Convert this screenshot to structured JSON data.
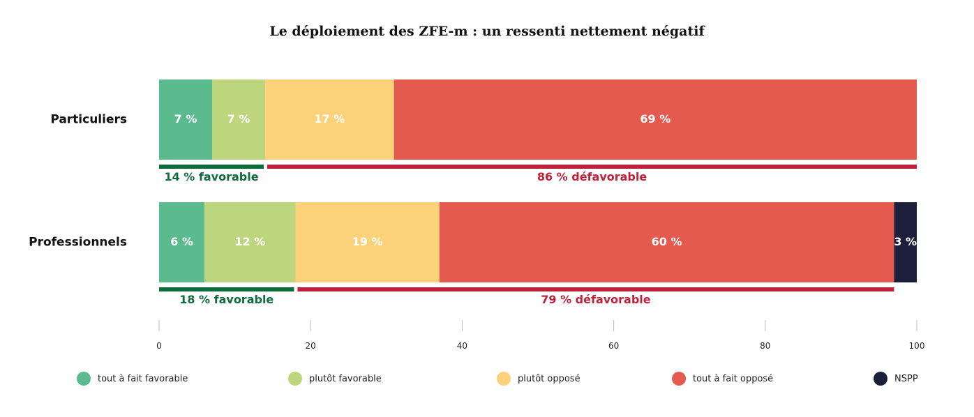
{
  "chart_data": {
    "type": "bar",
    "orientation": "horizontal",
    "stacked": true,
    "title": "Le déploiement des ZFE-m : un ressenti nettement négatif",
    "categories": [
      "Particuliers",
      "Professionnels"
    ],
    "series": [
      {
        "name": "tout à fait favorable",
        "color": "#5bba8e",
        "values": [
          7,
          6
        ],
        "labels": [
          "7 %",
          "6 %"
        ]
      },
      {
        "name": "plutôt favorable",
        "color": "#bdd67d",
        "values": [
          7,
          12
        ],
        "labels": [
          "7 %",
          "12 %"
        ]
      },
      {
        "name": "plutôt opposé",
        "color": "#fbd17a",
        "values": [
          17,
          19
        ],
        "labels": [
          "17 %",
          "19 %"
        ]
      },
      {
        "name": "tout à fait opposé",
        "color": "#e45a4e",
        "values": [
          69,
          60
        ],
        "labels": [
          "69 %",
          "60 %"
        ]
      },
      {
        "name": "NSPP",
        "color": "#1b1f3b",
        "values": [
          0,
          3
        ],
        "labels": [
          "",
          "3 %"
        ]
      }
    ],
    "summaries": [
      [
        {
          "label": "14 % favorable",
          "from": 0,
          "to": 14,
          "color": "#0e6b3a"
        },
        {
          "label": "86 % défavorable",
          "from": 14,
          "to": 100,
          "color": "#c0203a"
        }
      ],
      [
        {
          "label": "18 %  favorable",
          "from": 0,
          "to": 18,
          "color": "#0e6b3a"
        },
        {
          "label": "79 % défavorable",
          "from": 18,
          "to": 97,
          "color": "#c0203a"
        }
      ]
    ],
    "xlim": [
      0,
      100
    ],
    "xticks": [
      0,
      20,
      40,
      60,
      80,
      100
    ],
    "grid": false,
    "legend_position": "bottom"
  }
}
